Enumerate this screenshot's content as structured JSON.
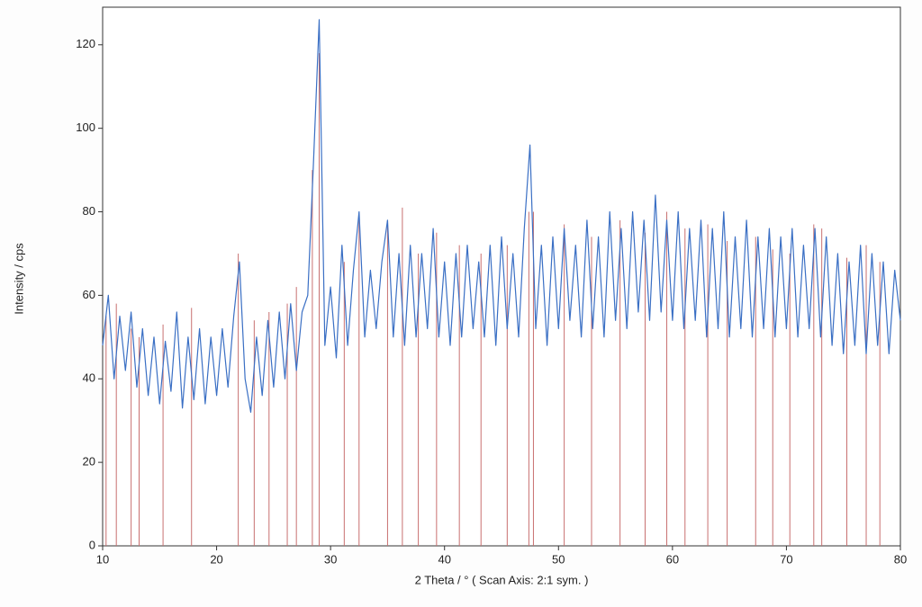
{
  "chart_data": {
    "type": "line",
    "x_label": "2 Theta / °   ( Scan Axis: 2:1 sym. )",
    "y_label": "Intensity / cps",
    "x": [
      10,
      10.5,
      11,
      11.5,
      12,
      12.5,
      13,
      13.5,
      14,
      14.5,
      15,
      15.5,
      16,
      16.5,
      17,
      17.5,
      18,
      18.5,
      19,
      19.5,
      20,
      20.5,
      21,
      21.5,
      22,
      22.5,
      23,
      23.5,
      24,
      24.5,
      25,
      25.5,
      26,
      26.5,
      27,
      27.5,
      28,
      28.5,
      29,
      29.5,
      30,
      30.5,
      31,
      31.5,
      32,
      32.5,
      33,
      33.5,
      34,
      34.5,
      35,
      35.5,
      36,
      36.5,
      37,
      37.5,
      38,
      38.5,
      39,
      39.5,
      40,
      40.5,
      41,
      41.5,
      42,
      42.5,
      43,
      43.5,
      44,
      44.5,
      45,
      45.5,
      46,
      46.5,
      47,
      47.5,
      48,
      48.5,
      49,
      49.5,
      50,
      50.5,
      51,
      51.5,
      52,
      52.5,
      53,
      53.5,
      54,
      54.5,
      55,
      55.5,
      56,
      56.5,
      57,
      57.5,
      58,
      58.5,
      59,
      59.5,
      60,
      60.5,
      61,
      61.5,
      62,
      62.5,
      63,
      63.5,
      64,
      64.5,
      65,
      65.5,
      66,
      66.5,
      67,
      67.5,
      68,
      68.5,
      69,
      69.5,
      70,
      70.5,
      71,
      71.5,
      72,
      72.5,
      73,
      73.5,
      74,
      74.5,
      75,
      75.5,
      76,
      76.5,
      77,
      77.5,
      78,
      78.5,
      79,
      79.5,
      80
    ],
    "series": [
      {
        "color": "#3a6fc4",
        "values": [
          48,
          60,
          40,
          55,
          42,
          56,
          38,
          52,
          36,
          50,
          34,
          49,
          37,
          56,
          33,
          50,
          35,
          52,
          34,
          50,
          36,
          52,
          38,
          55,
          68,
          40,
          32,
          50,
          36,
          54,
          38,
          56,
          40,
          58,
          42,
          56,
          60,
          92,
          126,
          48,
          62,
          45,
          72,
          48,
          66,
          80,
          50,
          66,
          52,
          68,
          78,
          50,
          70,
          48,
          72,
          50,
          70,
          52,
          76,
          50,
          68,
          48,
          70,
          50,
          72,
          52,
          68,
          50,
          72,
          48,
          74,
          52,
          70,
          50,
          76,
          96,
          52,
          72,
          48,
          74,
          52,
          76,
          54,
          72,
          50,
          78,
          52,
          74,
          50,
          80,
          54,
          76,
          52,
          80,
          56,
          78,
          54,
          84,
          56,
          78,
          54,
          80,
          52,
          76,
          54,
          78,
          50,
          76,
          52,
          80,
          50,
          74,
          52,
          78,
          50,
          74,
          52,
          76,
          50,
          74,
          52,
          76,
          50,
          72,
          52,
          76,
          50,
          74,
          48,
          70,
          46,
          68,
          48,
          72,
          46,
          70,
          48,
          68,
          46,
          66,
          54
        ]
      }
    ],
    "references": {
      "color": "#c87070",
      "x": [
        10.3,
        11.2,
        12.5,
        13.2,
        15.3,
        17.8,
        21.9,
        23.3,
        24.6,
        26.2,
        27.0,
        28.4,
        29.0,
        31.2,
        32.5,
        35.0,
        36.3,
        37.7,
        39.3,
        41.3,
        43.2,
        45.5,
        47.4,
        47.8,
        50.5,
        52.9,
        55.4,
        57.6,
        59.5,
        61.1,
        63.1,
        64.8,
        67.3,
        68.8,
        70.3,
        72.4,
        73.1,
        75.3,
        77.0,
        78.2
      ],
      "values": [
        55,
        58,
        52,
        50,
        53,
        57,
        70,
        54,
        56,
        58,
        62,
        90,
        118,
        68,
        78,
        78,
        81,
        70,
        75,
        72,
        70,
        72,
        80,
        80,
        77,
        74,
        78,
        75,
        80,
        76,
        77,
        73,
        74,
        71,
        70,
        77,
        76,
        69,
        72,
        68
      ]
    },
    "xlim": [
      10,
      80
    ],
    "ylim": [
      0,
      129
    ],
    "xticks": [
      10,
      20,
      30,
      40,
      50,
      60,
      70,
      80
    ],
    "yticks": [
      0,
      20,
      40,
      60,
      80,
      100,
      120
    ]
  }
}
